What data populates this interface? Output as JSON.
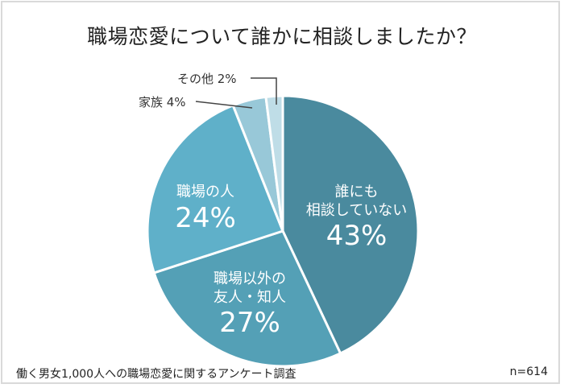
{
  "chart_data": {
    "type": "pie",
    "title": "職場恋愛について誰かに相談しましたか？",
    "slices": [
      {
        "label": "誰にも相談していない",
        "value": 43,
        "color": "#4a8a9e"
      },
      {
        "label": "職場以外の友人・知人",
        "value": 27,
        "color": "#54a0b6"
      },
      {
        "label": "職場の人",
        "value": 24,
        "color": "#5fb0c9"
      },
      {
        "label": "家族",
        "value": 4,
        "color": "#98c8d8"
      },
      {
        "label": "その他",
        "value": 2,
        "color": "#bfdde7"
      }
    ],
    "start_angle": "12 o'clock, clockwise",
    "source": "働く男女1,000人への職場恋愛に関するアンケート調査",
    "sample_size": "n=614"
  },
  "title": "職場恋愛について誰かに相談しましたか？",
  "labels": {
    "none_line1": "誰にも",
    "none_line2": "相談していない",
    "none_pct": "43%",
    "friends_line1": "職場以外の",
    "friends_line2": "友人・知人",
    "friends_pct": "27%",
    "work_line1": "職場の人",
    "work_pct": "24%",
    "family": "家族 4%",
    "other": "その他 2%"
  },
  "footer": {
    "source": "働く男女1,000人への職場恋愛に関するアンケート調査",
    "n": "n=614"
  }
}
